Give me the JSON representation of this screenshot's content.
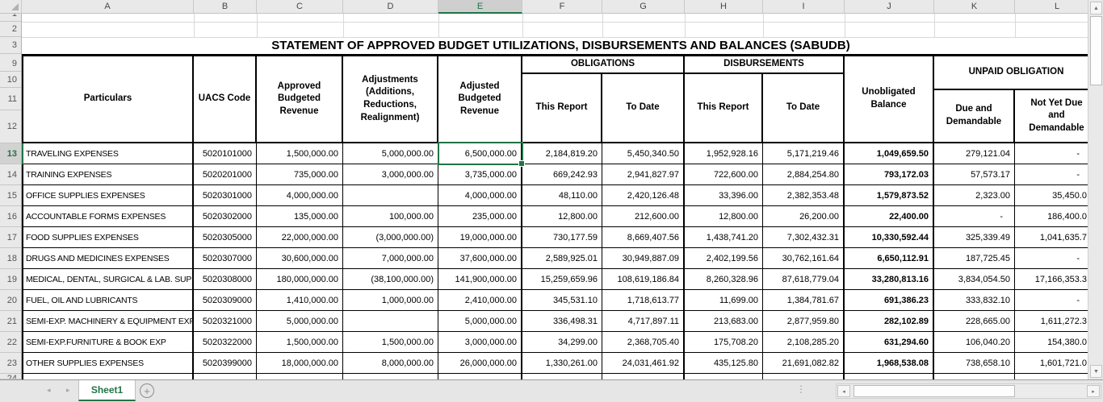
{
  "spreadsheet": {
    "column_headers": [
      "A",
      "B",
      "C",
      "D",
      "E",
      "F",
      "G",
      "H",
      "I",
      "J",
      "K",
      "L"
    ],
    "row_numbers": [
      "1",
      "2",
      "3",
      "9",
      "10",
      "11",
      "12",
      "13",
      "14",
      "15",
      "16",
      "17",
      "18",
      "19",
      "20",
      "21",
      "22",
      "23",
      "24"
    ],
    "selected_cell": {
      "column": "E",
      "row": "13"
    },
    "title": "STATEMENT OF APPROVED BUDGET UTILIZATIONS, DISBURSEMENTS AND BALANCES (SABUDB)",
    "table": {
      "headers": {
        "particulars": "Particulars",
        "uacs_code": "UACS  Code",
        "approved": "Approved Budgeted Revenue",
        "adjustments": "Adjustments (Additions, Reductions, Realignment)",
        "adjusted": "Adjusted Budgeted Revenue",
        "obligations": "OBLIGATIONS",
        "disbursements": "DISBURSEMENTS",
        "this_report": "This Report",
        "to_date": "To Date",
        "unobligated": "Unobligated Balance",
        "unpaid": "UNPAID OBLIGATION",
        "due": "Due and Demandable",
        "not_yet_due": "Not Yet Due and Demandable"
      },
      "rows": [
        {
          "cells": [
            "TRAVELING EXPENSES",
            "5020101000",
            "1,500,000.00",
            "5,000,000.00",
            "6,500,000.00",
            "2,184,819.20",
            "5,450,340.50",
            "1,952,928.16",
            "5,171,219.46",
            "1,049,659.50",
            "279,121.04",
            "-"
          ]
        },
        {
          "cells": [
            "TRAINING EXPENSES",
            "5020201000",
            "735,000.00",
            "3,000,000.00",
            "3,735,000.00",
            "669,242.93",
            "2,941,827.97",
            "722,600.00",
            "2,884,254.80",
            "793,172.03",
            "57,573.17",
            "-"
          ]
        },
        {
          "cells": [
            "OFFICE SUPPLIES EXPENSES",
            "5020301000",
            "4,000,000.00",
            "",
            "4,000,000.00",
            "48,110.00",
            "2,420,126.48",
            "33,396.00",
            "2,382,353.48",
            "1,579,873.52",
            "2,323.00",
            "35,450.0"
          ]
        },
        {
          "cells": [
            "ACCOUNTABLE FORMS EXPENSES",
            "5020302000",
            "135,000.00",
            "100,000.00",
            "235,000.00",
            "12,800.00",
            "212,600.00",
            "12,800.00",
            "26,200.00",
            "22,400.00",
            "-",
            "186,400.0"
          ]
        },
        {
          "cells": [
            "FOOD SUPPLIES EXPENSES",
            "5020305000",
            "22,000,000.00",
            "(3,000,000.00)",
            "19,000,000.00",
            "730,177.59",
            "8,669,407.56",
            "1,438,741.20",
            "7,302,432.31",
            "10,330,592.44",
            "325,339.49",
            "1,041,635.7"
          ]
        },
        {
          "cells": [
            "DRUGS AND MEDICINES EXPENSES",
            "5020307000",
            "30,600,000.00",
            "7,000,000.00",
            "37,600,000.00",
            "2,589,925.01",
            "30,949,887.09",
            "2,402,199.56",
            "30,762,161.64",
            "6,650,112.91",
            "187,725.45",
            "-"
          ]
        },
        {
          "cells": [
            "MEDICAL, DENTAL, SURGICAL & LAB. SUPP",
            "5020308000",
            "180,000,000.00",
            "(38,100,000.00)",
            "141,900,000.00",
            "15,259,659.96",
            "108,619,186.84",
            "8,260,328.96",
            "87,618,779.04",
            "33,280,813.16",
            "3,834,054.50",
            "17,166,353.3"
          ]
        },
        {
          "cells": [
            "FUEL, OIL AND LUBRICANTS",
            "5020309000",
            "1,410,000.00",
            "1,000,000.00",
            "2,410,000.00",
            "345,531.10",
            "1,718,613.77",
            "11,699.00",
            "1,384,781.67",
            "691,386.23",
            "333,832.10",
            "-"
          ]
        },
        {
          "cells": [
            "SEMI-EXP. MACHINERY & EQUIPMENT  EXP",
            "5020321000",
            "5,000,000.00",
            "",
            "5,000,000.00",
            "336,498.31",
            "4,717,897.11",
            "213,683.00",
            "2,877,959.80",
            "282,102.89",
            "228,665.00",
            "1,611,272.3"
          ]
        },
        {
          "cells": [
            "SEMI-EXP.FURNITURE & BOOK EXP",
            "5020322000",
            "1,500,000.00",
            "1,500,000.00",
            "3,000,000.00",
            "34,299.00",
            "2,368,705.40",
            "175,708.20",
            "2,108,285.20",
            "631,294.60",
            "106,040.20",
            "154,380.0"
          ]
        },
        {
          "cells": [
            "OTHER SUPPLIES EXPENSES",
            "5020399000",
            "18,000,000.00",
            "8,000,000.00",
            "26,000,000.00",
            "1,330,261.00",
            "24,031,461.92",
            "435,125.80",
            "21,691,082.82",
            "1,968,538.08",
            "738,658.10",
            "1,601,721.0"
          ]
        }
      ]
    },
    "sheet_tab": "Sheet1"
  },
  "icons": {
    "up": "▲",
    "down": "▼",
    "left": "◂",
    "right": "▸",
    "tab_left": "◂",
    "tab_right": "▸",
    "plus": "+",
    "dots": "⋮"
  }
}
